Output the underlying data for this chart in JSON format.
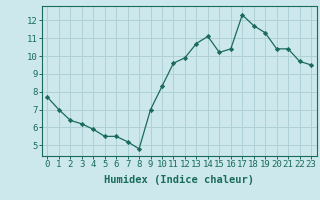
{
  "x": [
    0,
    1,
    2,
    3,
    4,
    5,
    6,
    7,
    8,
    9,
    10,
    11,
    12,
    13,
    14,
    15,
    16,
    17,
    18,
    19,
    20,
    21,
    22,
    23
  ],
  "y": [
    7.7,
    7.0,
    6.4,
    6.2,
    5.9,
    5.5,
    5.5,
    5.2,
    4.8,
    7.0,
    8.3,
    9.6,
    9.9,
    10.7,
    11.1,
    10.2,
    10.4,
    12.3,
    11.7,
    11.3,
    10.4,
    10.4,
    9.7,
    9.5
  ],
  "line_color": "#1a6b5a",
  "marker": "D",
  "marker_size": 2.2,
  "bg_color": "#cce8ec",
  "grid_color": "#b0d0d8",
  "xlabel": "Humidex (Indice chaleur)",
  "xlim": [
    -0.5,
    23.5
  ],
  "ylim": [
    4.4,
    12.8
  ],
  "yticks": [
    5,
    6,
    7,
    8,
    9,
    10,
    11,
    12
  ],
  "xticks": [
    0,
    1,
    2,
    3,
    4,
    5,
    6,
    7,
    8,
    9,
    10,
    11,
    12,
    13,
    14,
    15,
    16,
    17,
    18,
    19,
    20,
    21,
    22,
    23
  ],
  "label_fontsize": 7.5,
  "tick_fontsize": 6.5
}
